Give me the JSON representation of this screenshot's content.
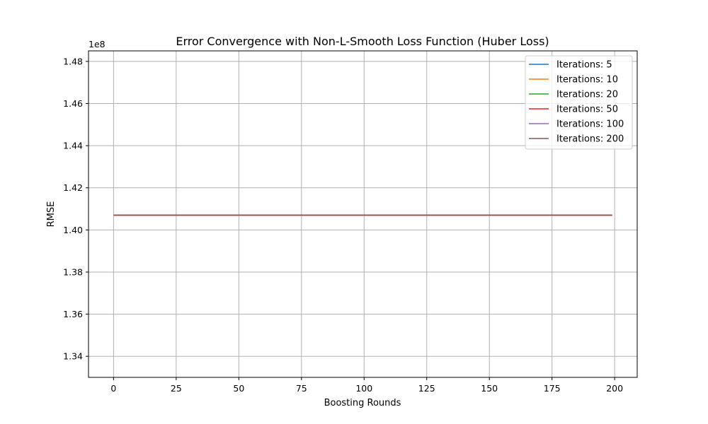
{
  "chart_data": {
    "type": "line",
    "title": "Error Convergence with Non-L-Smooth Loss Function (Huber Loss)",
    "xlabel": "Boosting Rounds",
    "ylabel": "RMSE",
    "y_offset_label": "1e8",
    "y_scale": 100000000,
    "xlim": [
      -10,
      209
    ],
    "ylim": [
      1.33,
      1.485
    ],
    "x_ticks": [
      0,
      25,
      50,
      75,
      100,
      125,
      150,
      175,
      200
    ],
    "y_ticks": [
      1.34,
      1.36,
      1.38,
      1.4,
      1.42,
      1.44,
      1.46,
      1.48
    ],
    "y_tick_labels": [
      "1.34",
      "1.36",
      "1.38",
      "1.40",
      "1.42",
      "1.44",
      "1.46",
      "1.48"
    ],
    "grid": true,
    "legend_position": "top-right",
    "x_range": [
      0,
      199
    ],
    "series": [
      {
        "name": "Iterations: 5",
        "color": "#1f77b4",
        "value": 1.407
      },
      {
        "name": "Iterations: 10",
        "color": "#ff7f0e",
        "value": 1.407
      },
      {
        "name": "Iterations: 20",
        "color": "#2ca02c",
        "value": 1.407
      },
      {
        "name": "Iterations: 50",
        "color": "#d62728",
        "value": 1.407
      },
      {
        "name": "Iterations: 100",
        "color": "#9467bd",
        "value": 1.407
      },
      {
        "name": "Iterations: 200",
        "color": "#8c564b",
        "value": 1.407
      }
    ]
  }
}
